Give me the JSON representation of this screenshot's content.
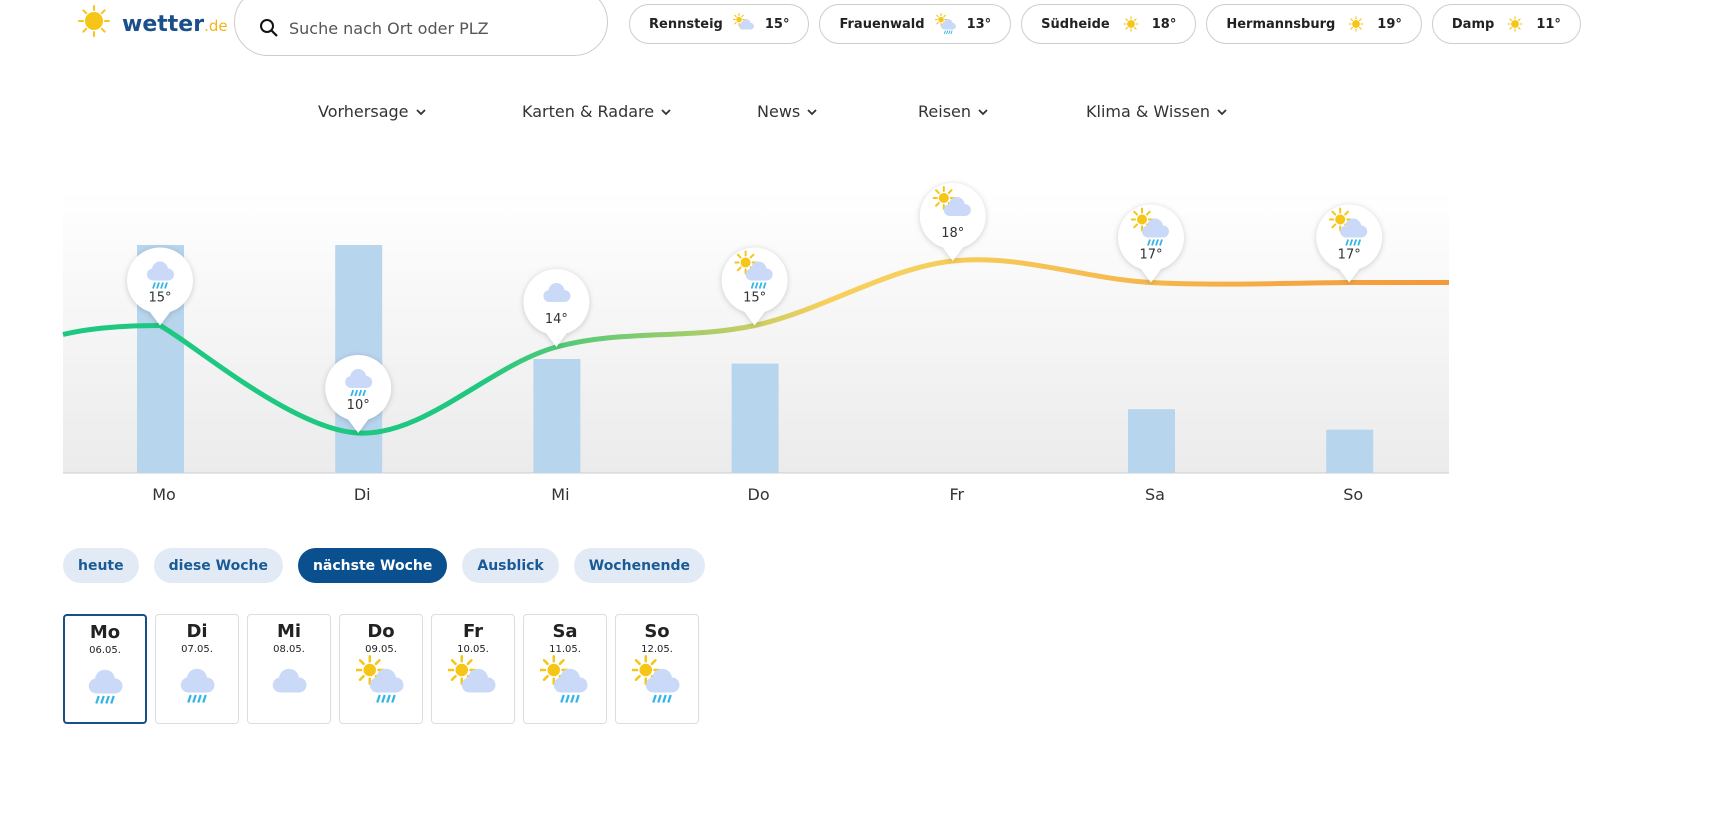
{
  "header": {
    "logo": {
      "name": "wetter",
      "tld": ".de"
    },
    "search_placeholder": "Suche nach Ort oder PLZ",
    "locations": [
      {
        "name": "Rennsteig",
        "icon": "sun-cloud",
        "temp": "15°"
      },
      {
        "name": "Frauenwald",
        "icon": "sun-rain",
        "temp": "13°"
      },
      {
        "name": "Südheide",
        "icon": "sun",
        "temp": "18°"
      },
      {
        "name": "Hermannsburg",
        "icon": "sun",
        "temp": "19°"
      },
      {
        "name": "Damp",
        "icon": "sun",
        "temp": "11°"
      }
    ]
  },
  "nav": [
    "Vorhersage",
    "Karten & Radare",
    "News",
    "Reisen",
    "Klima & Wissen"
  ],
  "chart": {
    "days": [
      "Mo",
      "Di",
      "Mi",
      "Do",
      "Fr",
      "Sa",
      "So"
    ],
    "temperatures": [
      15,
      10,
      14,
      15,
      18,
      17,
      17
    ],
    "temperature_labels": [
      "15°",
      "10°",
      "14°",
      "15°",
      "18°",
      "17°",
      "17°"
    ],
    "icons": [
      "rain",
      "rain",
      "cloud",
      "sun-rain",
      "sun-cloud",
      "sun-rain",
      "sun-rain"
    ],
    "precipitation": [
      100,
      100,
      50,
      48,
      0,
      28,
      19
    ],
    "bar_color": "#b8d5ee",
    "line_colors": [
      "#1ec880",
      "#f6cf5c",
      "#f4973a"
    ]
  },
  "tabs": {
    "items": [
      "heute",
      "diese Woche",
      "nächste Woche",
      "Ausblick",
      "Wochenende"
    ],
    "active": 2
  },
  "day_tiles": {
    "selected": 0,
    "items": [
      {
        "day": "Mo",
        "date": "06.05."
      },
      {
        "day": "Di",
        "date": "07.05."
      },
      {
        "day": "Mi",
        "date": "08.05."
      },
      {
        "day": "Do",
        "date": "09.05."
      },
      {
        "day": "Fr",
        "date": "10.05."
      },
      {
        "day": "Sa",
        "date": "11.05."
      },
      {
        "day": "So",
        "date": "12.05."
      }
    ]
  }
}
